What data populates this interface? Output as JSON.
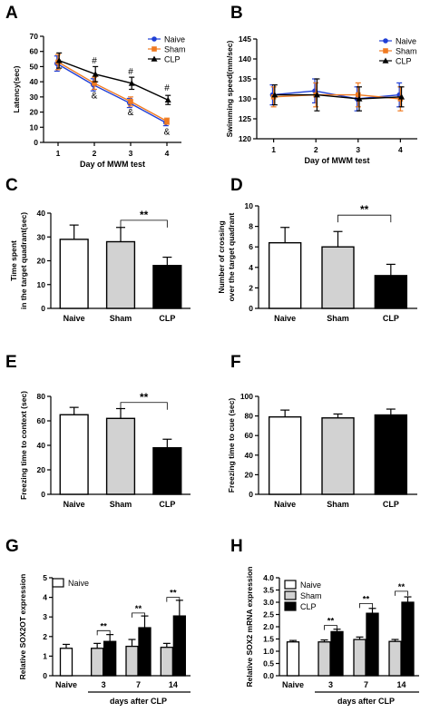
{
  "colors": {
    "naive": "#1f3fd6",
    "sham": "#f07a20",
    "clp": "#000000",
    "white": "#ffffff",
    "gray": "#d2d2d2",
    "black": "#000000"
  },
  "chart_data": [
    {
      "id": "A",
      "letter": "A",
      "type": "line",
      "xlabel": "Day  of MWM test",
      "ylabel": "Latency(sec)",
      "ylim": [
        0,
        70
      ],
      "yticks": [
        0,
        10,
        20,
        30,
        40,
        50,
        60,
        70
      ],
      "x": [
        1,
        2,
        3,
        4
      ],
      "xticks": [
        "1",
        "2",
        "3",
        "4"
      ],
      "series": [
        {
          "name": "Naive",
          "color": "naive",
          "marker": "circle",
          "values": [
            52,
            38,
            26,
            13
          ],
          "err": [
            5,
            4,
            3,
            2
          ]
        },
        {
          "name": "Sham",
          "color": "sham",
          "marker": "square",
          "values": [
            53,
            39,
            27,
            14
          ],
          "err": [
            5,
            4,
            3,
            2
          ]
        },
        {
          "name": "CLP",
          "color": "clp",
          "marker": "triangle",
          "values": [
            54,
            45,
            39,
            28
          ],
          "err": [
            5,
            5,
            4,
            3
          ]
        }
      ],
      "annotations": [
        {
          "x": 2,
          "y": 52,
          "text": "#"
        },
        {
          "x": 3,
          "y": 45,
          "text": "#"
        },
        {
          "x": 4,
          "y": 34,
          "text": "#"
        },
        {
          "x": 2,
          "y": 29,
          "text": "&"
        },
        {
          "x": 3,
          "y": 18,
          "text": "&"
        },
        {
          "x": 4,
          "y": 5,
          "text": "&"
        }
      ]
    },
    {
      "id": "B",
      "letter": "B",
      "type": "line",
      "xlabel": "Day  of MWM test",
      "ylabel": "Swimming speed(mm/sec)",
      "ylim": [
        120,
        145
      ],
      "yticks": [
        120,
        125,
        130,
        135,
        140,
        145
      ],
      "x": [
        1,
        2,
        3,
        4
      ],
      "xticks": [
        "1",
        "2",
        "3",
        "4"
      ],
      "series": [
        {
          "name": "Naive",
          "color": "naive",
          "marker": "circle",
          "values": [
            131,
            132,
            130,
            131
          ],
          "err": [
            2.5,
            3,
            3,
            3
          ]
        },
        {
          "name": "Sham",
          "color": "sham",
          "marker": "square",
          "values": [
            130.5,
            131,
            131,
            130
          ],
          "err": [
            2.5,
            3,
            3,
            3
          ]
        },
        {
          "name": "CLP",
          "color": "clp",
          "marker": "triangle",
          "values": [
            131,
            131,
            130,
            130.5
          ],
          "err": [
            2.5,
            4,
            3,
            2.5
          ]
        }
      ],
      "annotations": []
    },
    {
      "id": "C",
      "letter": "C",
      "type": "bar",
      "ylabel": [
        "Time spent",
        "in the target quadrant(sec)"
      ],
      "ylim": [
        0,
        40
      ],
      "yticks": [
        0,
        10,
        20,
        30,
        40
      ],
      "categories": [
        "Naive",
        "Sham",
        "CLP"
      ],
      "values": [
        29,
        28,
        18
      ],
      "err": [
        6,
        6,
        3.5
      ],
      "fills": [
        "white",
        "gray",
        "black"
      ],
      "sig": [
        {
          "from": 1,
          "to": 2,
          "y": 37,
          "text": "**"
        }
      ]
    },
    {
      "id": "D",
      "letter": "D",
      "type": "bar",
      "ylabel": [
        "Number of crossing",
        "over the target quadrant"
      ],
      "ylim": [
        0,
        10
      ],
      "yticks": [
        0,
        2,
        4,
        6,
        8,
        10
      ],
      "categories": [
        "Naive",
        "Sham",
        "CLP"
      ],
      "values": [
        6.4,
        6,
        3.2
      ],
      "err": [
        1.5,
        1.5,
        1.1
      ],
      "fills": [
        "white",
        "gray",
        "black"
      ],
      "sig": [
        {
          "from": 1,
          "to": 2,
          "y": 9.1,
          "text": "**"
        }
      ]
    },
    {
      "id": "E",
      "letter": "E",
      "type": "bar",
      "ylabel": [
        "Freezing time to context (sec)"
      ],
      "ylim": [
        0,
        80
      ],
      "yticks": [
        0,
        20,
        40,
        60,
        80
      ],
      "categories": [
        "Naive",
        "Sham",
        "CLP"
      ],
      "values": [
        65,
        62,
        38
      ],
      "err": [
        6,
        8,
        7
      ],
      "fills": [
        "white",
        "gray",
        "black"
      ],
      "sig": [
        {
          "from": 1,
          "to": 2,
          "y": 75,
          "text": "**"
        }
      ]
    },
    {
      "id": "F",
      "letter": "F",
      "type": "bar",
      "ylabel": [
        "Freezing time to cue (sec)"
      ],
      "ylim": [
        0,
        100
      ],
      "yticks": [
        0,
        20,
        40,
        60,
        80,
        100
      ],
      "categories": [
        "Naive",
        "Sham",
        "CLP"
      ],
      "values": [
        79,
        78,
        81
      ],
      "err": [
        7,
        4,
        6
      ],
      "fills": [
        "white",
        "gray",
        "black"
      ],
      "sig": []
    },
    {
      "id": "G",
      "letter": "G",
      "type": "grouped-bar",
      "ylabel": "Relative SOX2OT expression",
      "ylim": [
        0,
        5
      ],
      "yticks": [
        "0",
        "1",
        "2",
        "3",
        "4",
        "5"
      ],
      "xtitle": "days after CLP",
      "legend": [
        {
          "name": "Naive",
          "fill": "white"
        }
      ],
      "single": {
        "label": "Naive",
        "value": 1.4,
        "err": 0.2
      },
      "groups": [
        {
          "label": "3",
          "values": [
            1.4,
            1.75
          ],
          "err": [
            0.25,
            0.35
          ]
        },
        {
          "label": "7",
          "values": [
            1.5,
            2.45
          ],
          "err": [
            0.35,
            0.6
          ]
        },
        {
          "label": "14",
          "values": [
            1.45,
            3.05
          ],
          "err": [
            0.2,
            0.8
          ]
        }
      ],
      "fills": [
        "gray",
        "black"
      ],
      "sig": [
        {
          "group": 0,
          "y": 2.3,
          "text": "**"
        },
        {
          "group": 1,
          "y": 3.2,
          "text": "**"
        },
        {
          "group": 2,
          "y": 4.0,
          "text": "**"
        }
      ]
    },
    {
      "id": "H",
      "letter": "H",
      "type": "grouped-bar",
      "ylabel": "Relative SOX2 mRNA expression",
      "ylim": [
        0,
        4
      ],
      "yticks": [
        "0.0",
        "0.5",
        "1.0",
        "1.5",
        "2.0",
        "2.5",
        "3.0",
        "3.5",
        "4.0"
      ],
      "xtitle": "days after CLP",
      "legend": [
        {
          "name": "Naive",
          "fill": "white"
        },
        {
          "name": "Sham",
          "fill": "gray"
        },
        {
          "name": "CLP",
          "fill": "black"
        }
      ],
      "single": {
        "label": "Naive",
        "value": 1.38,
        "err": 0.06
      },
      "groups": [
        {
          "label": "3",
          "values": [
            1.38,
            1.8
          ],
          "err": [
            0.08,
            0.1
          ]
        },
        {
          "label": "7",
          "values": [
            1.48,
            2.55
          ],
          "err": [
            0.1,
            0.2
          ]
        },
        {
          "label": "14",
          "values": [
            1.4,
            3.0
          ],
          "err": [
            0.08,
            0.22
          ]
        }
      ],
      "fills": [
        "gray",
        "black"
      ],
      "sig": [
        {
          "group": 0,
          "y": 2.05,
          "text": "**"
        },
        {
          "group": 1,
          "y": 2.95,
          "text": "**"
        },
        {
          "group": 2,
          "y": 3.45,
          "text": "**"
        }
      ]
    }
  ]
}
